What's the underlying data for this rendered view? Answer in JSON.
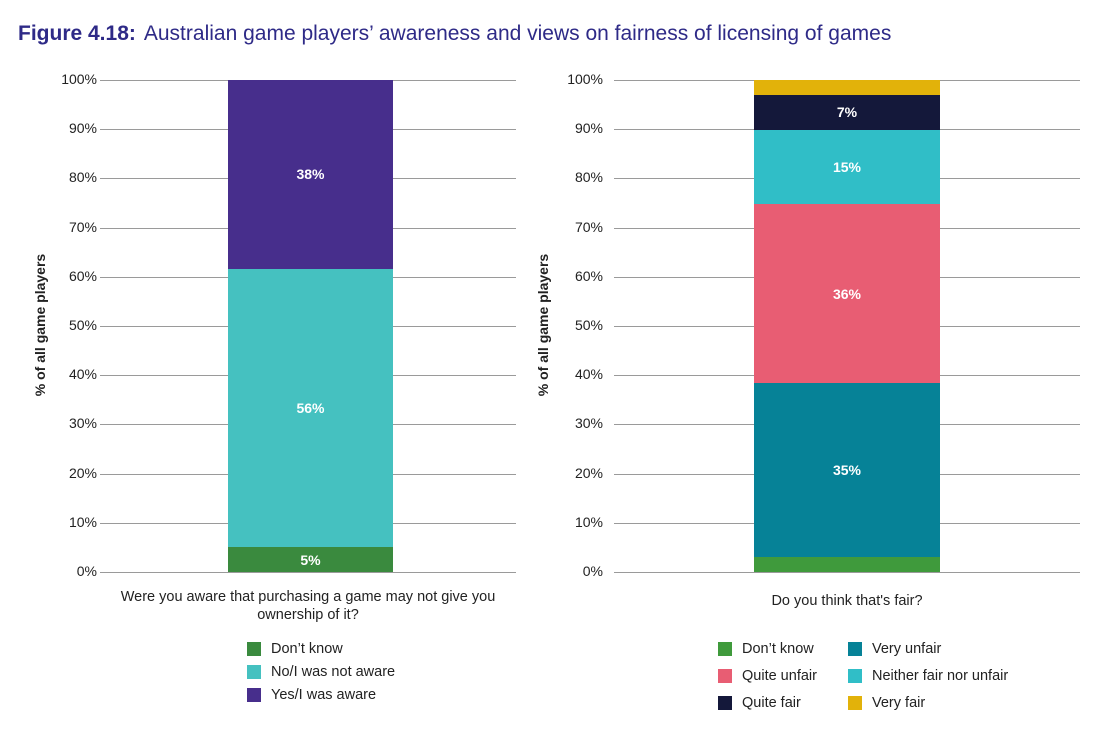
{
  "figure": {
    "number": "Figure 4.18:",
    "title": "Australian game players’ awareness and views on fairness of licensing of games"
  },
  "chart_data": [
    {
      "type": "bar",
      "stacked": true,
      "ylabel": "% of all game players",
      "xlabel": "Were you aware that purchasing a game may not give you ownership of it?",
      "ylim": [
        0,
        100
      ],
      "yticks": [
        "0%",
        "10%",
        "20%",
        "30%",
        "40%",
        "50%",
        "60%",
        "70%",
        "80%",
        "90%",
        "100%"
      ],
      "legend_position": "bottom",
      "series": [
        {
          "name": "Don’t know",
          "value": 5,
          "label": "5%",
          "color": "#3a8a3e"
        },
        {
          "name": "No/I was not aware",
          "value": 56,
          "label": "56%",
          "color": "#45c1c0"
        },
        {
          "name": "Yes/I was aware",
          "value": 38,
          "label": "38%",
          "color": "#472e8c"
        }
      ]
    },
    {
      "type": "bar",
      "stacked": true,
      "ylabel": "% of all game players",
      "xlabel": "Do you think that's fair?",
      "ylim": [
        0,
        100
      ],
      "yticks": [
        "0%",
        "10%",
        "20%",
        "30%",
        "40%",
        "50%",
        "60%",
        "70%",
        "80%",
        "90%",
        "100%"
      ],
      "legend_position": "bottom",
      "series": [
        {
          "name": "Don’t know",
          "value": 3,
          "label": "",
          "color": "#3f9a3c"
        },
        {
          "name": "Very unfair",
          "value": 35,
          "label": "35%",
          "color": "#068297"
        },
        {
          "name": "Quite unfair",
          "value": 36,
          "label": "36%",
          "color": "#e85d73"
        },
        {
          "name": "Neither fair nor unfair",
          "value": 15,
          "label": "15%",
          "color": "#30bec7"
        },
        {
          "name": "Quite fair",
          "value": 7,
          "label": "7%",
          "color": "#14183a"
        },
        {
          "name": "Very fair",
          "value": 3,
          "label": "",
          "color": "#e2b20a"
        }
      ]
    }
  ]
}
